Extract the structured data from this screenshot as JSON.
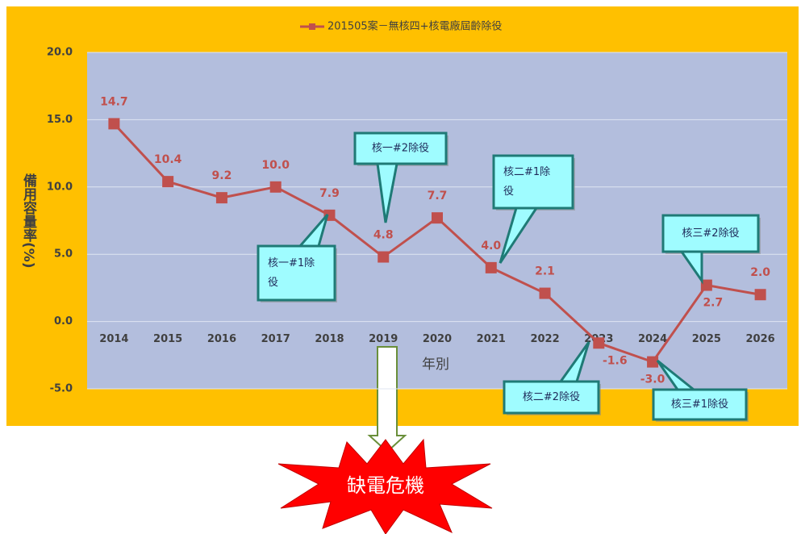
{
  "chart_data": {
    "type": "line",
    "legend": "201505案－無核四+核電廠屆齡除役",
    "xlabel": "年別",
    "ylabel": "備用容量率(%)",
    "categories": [
      "2014",
      "2015",
      "2016",
      "2017",
      "2018",
      "2019",
      "2020",
      "2021",
      "2022",
      "2023",
      "2024",
      "2025",
      "2026"
    ],
    "series": [
      {
        "name": "201505案－無核四+核電廠屆齡除役",
        "color": "#c0504d",
        "values": [
          14.7,
          10.4,
          9.2,
          10.0,
          7.9,
          4.8,
          7.7,
          4.0,
          2.1,
          -1.6,
          -3.0,
          2.7,
          2.0
        ],
        "value_labels": [
          "14.7",
          "10.4",
          "9.2",
          "10.0",
          "7.9",
          "4.8",
          "7.7",
          "4.0",
          "2.1",
          "-1.6",
          "-3.0",
          "2.7",
          "2.0"
        ]
      }
    ],
    "ylim": [
      -5,
      20
    ],
    "yticks": [
      {
        "value": -5,
        "label": "-5.0"
      },
      {
        "value": 0,
        "label": "0.0"
      },
      {
        "value": 5,
        "label": "5.0"
      },
      {
        "value": 10,
        "label": "10.0"
      },
      {
        "value": 15,
        "label": "15.0"
      },
      {
        "value": 20,
        "label": "20.0"
      }
    ],
    "grid": true,
    "annotations": [
      {
        "lines": [
          "核一#1除",
          "役"
        ]
      },
      {
        "lines": [
          "核一#2除役"
        ]
      },
      {
        "lines": [
          "核二#1除",
          "役"
        ]
      },
      {
        "lines": [
          "核三#2除役"
        ]
      },
      {
        "lines": [
          "核二#2除役"
        ]
      },
      {
        "lines": [
          "核三#1除役"
        ]
      }
    ],
    "callout": "缺電危機"
  }
}
